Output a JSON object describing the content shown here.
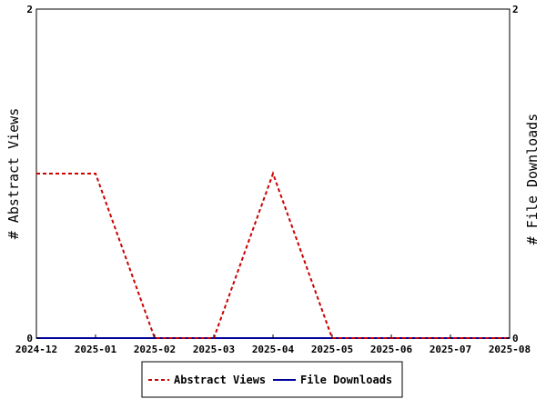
{
  "chart_data": {
    "type": "line",
    "x": [
      "2024-12",
      "2025-01",
      "2025-02",
      "2025-03",
      "2025-04",
      "2025-05",
      "2025-06",
      "2025-07",
      "2025-08"
    ],
    "series": [
      {
        "name": "Abstract Views",
        "axis": "left",
        "color": "#cc0000",
        "style": "dashed",
        "points": [
          {
            "x": "2024-12",
            "y": 1
          },
          {
            "x": "2025-01",
            "y": 1
          },
          {
            "x": "2025-02",
            "y": 0
          },
          {
            "x": "2025-03",
            "y": 0
          },
          {
            "x": "2025-04",
            "y": 1
          },
          {
            "x": "2025-05",
            "y": 0
          },
          {
            "x": "2025-06",
            "y": 0
          },
          {
            "x": "2025-07",
            "y": 0
          },
          {
            "x": "2025-08",
            "y": 0
          }
        ]
      },
      {
        "name": "File Downloads",
        "axis": "right",
        "color": "#000099",
        "style": "solid",
        "points": [
          {
            "x": "2024-12",
            "y": 0
          },
          {
            "x": "2025-01",
            "y": 0
          },
          {
            "x": "2025-02",
            "y": 0
          },
          {
            "x": "2025-03",
            "y": 0
          },
          {
            "x": "2025-04",
            "y": 0
          },
          {
            "x": "2025-05",
            "y": 0
          },
          {
            "x": "2025-06",
            "y": 0
          },
          {
            "x": "2025-07",
            "y": 0
          },
          {
            "x": "2025-08",
            "y": 0
          }
        ]
      }
    ],
    "ylabel_left": "# Abstract Views",
    "ylabel_right": "# File Downloads",
    "ylim_left": [
      0,
      2
    ],
    "ylim_right": [
      0,
      2
    ],
    "yticks_left": [
      0,
      2
    ],
    "yticks_right": [
      0,
      2
    ],
    "grid": false,
    "legend_position": "bottom-center"
  }
}
